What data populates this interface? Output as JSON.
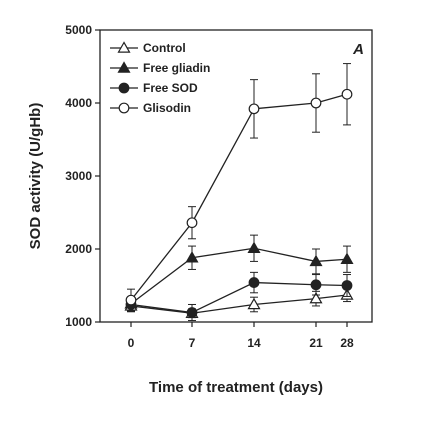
{
  "chart_data": {
    "type": "line",
    "panel_label": "A",
    "xlabel": "Time of treatment (days)",
    "ylabel": "SOD activity (U/gHb)",
    "x": [
      0,
      7,
      14,
      21,
      28
    ],
    "x_tick_labels": [
      "0",
      "7",
      "14",
      "21",
      "28"
    ],
    "ylim": [
      1000,
      5000
    ],
    "y_ticks": [
      1000,
      2000,
      3000,
      4000,
      5000
    ],
    "y_tick_labels": [
      "1000",
      "2000",
      "3000",
      "4000",
      "5000"
    ],
    "grid": false,
    "legend_position": "top-left",
    "series": [
      {
        "name": "Control",
        "marker": "triangle-open",
        "values": [
          1220,
          1120,
          1240,
          1320,
          1370
        ],
        "errors": [
          80,
          60,
          100,
          100,
          90
        ]
      },
      {
        "name": "Free gliadin",
        "marker": "triangle-filled",
        "values": [
          1250,
          1880,
          2010,
          1830,
          1860
        ],
        "errors": [
          90,
          160,
          180,
          170,
          180
        ]
      },
      {
        "name": "Free SOD",
        "marker": "circle-filled",
        "values": [
          1240,
          1130,
          1540,
          1510,
          1500
        ],
        "errors": [
          80,
          110,
          140,
          140,
          150
        ]
      },
      {
        "name": "Glisodin",
        "marker": "circle-open",
        "values": [
          1300,
          2360,
          3920,
          4000,
          4120
        ],
        "errors": [
          150,
          220,
          400,
          400,
          420
        ]
      }
    ]
  }
}
